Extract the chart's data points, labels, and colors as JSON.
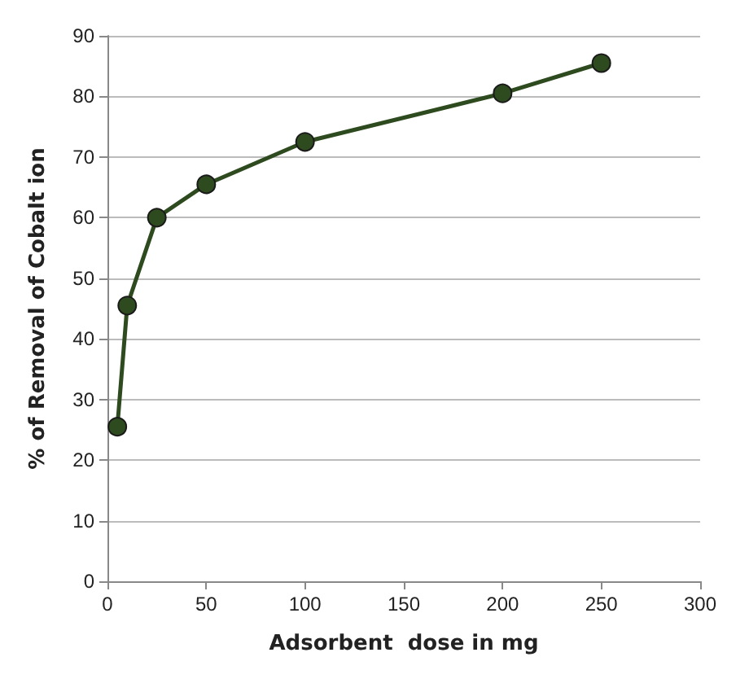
{
  "chart_data": {
    "type": "line",
    "xlabel": "Adsorbent  dose in mg",
    "ylabel": "% of Removal of Cobalt ion",
    "x": [
      5,
      10,
      25,
      50,
      100,
      200,
      250
    ],
    "series": [
      {
        "color": "#2e4a1f",
        "values": [
          25.5,
          45.5,
          60,
          65.5,
          72.5,
          80.5,
          85.5
        ]
      }
    ],
    "xlim": [
      0,
      300
    ],
    "xticks": [
      0,
      50,
      100,
      150,
      200,
      250,
      300
    ],
    "ylim": [
      0,
      90
    ],
    "yticks": [
      0,
      10,
      20,
      30,
      40,
      50,
      60,
      70,
      80,
      90
    ],
    "grid": "y",
    "marker": "circle",
    "line_style": "solid"
  }
}
